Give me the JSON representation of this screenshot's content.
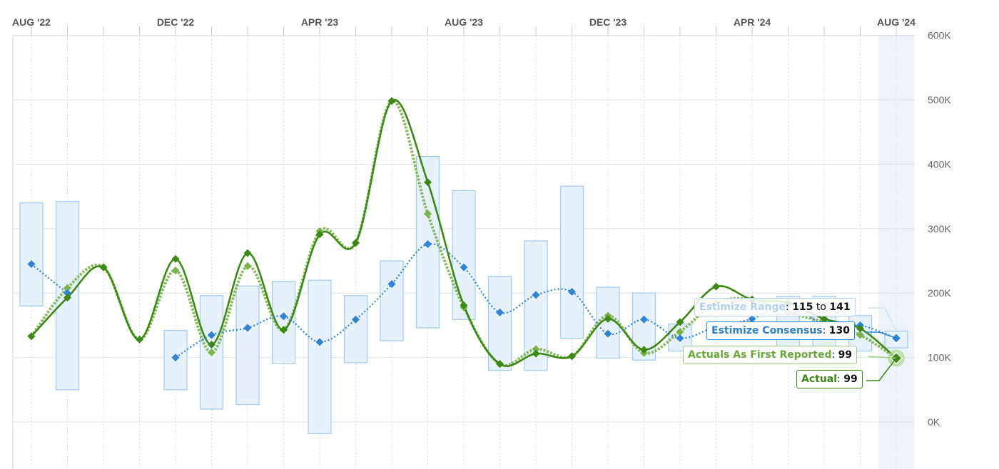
{
  "chart_data": {
    "type": "line",
    "x_tick_labels": [
      "AUG '22",
      "DEC '22",
      "APR '23",
      "AUG '23",
      "DEC '23",
      "APR '24",
      "AUG '24"
    ],
    "y_tick_labels": [
      "600K",
      "500K",
      "400K",
      "300K",
      "200K",
      "100K",
      "0K"
    ],
    "y_ticks": [
      600000,
      500000,
      400000,
      300000,
      200000,
      100000,
      0
    ],
    "ylim": [
      -70000,
      600000
    ],
    "grid": true,
    "x": [
      "2022-08",
      "2022-09",
      "2022-10",
      "2022-11",
      "2022-12",
      "2023-01",
      "2023-02",
      "2023-03",
      "2023-04",
      "2023-05",
      "2023-06",
      "2023-07",
      "2023-08",
      "2023-09",
      "2023-10",
      "2023-11",
      "2023-12",
      "2024-01",
      "2024-02",
      "2024-03",
      "2024-04",
      "2024-05",
      "2024-06",
      "2024-07",
      "2024-08"
    ],
    "series": [
      {
        "name": "Actual",
        "color": "#3c8a14",
        "values": [
          133000,
          193000,
          240000,
          128000,
          253000,
          120000,
          262000,
          143000,
          291000,
          278000,
          498000,
          372000,
          181000,
          90000,
          106000,
          102000,
          160000,
          112000,
          155000,
          210000,
          190000,
          185000,
          160000,
          145000,
          99000
        ]
      },
      {
        "name": "Actuals As First Reported",
        "color": "#7bb34a",
        "values": [
          133000,
          208000,
          240000,
          128000,
          235000,
          108000,
          242000,
          143000,
          296000,
          278000,
          498000,
          323000,
          178000,
          90000,
          113000,
          102000,
          165000,
          107000,
          140000,
          185000,
          190000,
          170000,
          155000,
          135000,
          99000
        ]
      },
      {
        "name": "Estimize Consensus",
        "color": "#2f84d6",
        "values": [
          245000,
          200000,
          null,
          null,
          100000,
          135000,
          146000,
          164000,
          124000,
          159000,
          214000,
          276000,
          240000,
          170000,
          197000,
          202000,
          137000,
          159000,
          130000,
          148000,
          160000,
          183000,
          150000,
          150000,
          130000
        ]
      }
    ],
    "estimize_range": [
      [
        180000,
        340000
      ],
      [
        50000,
        342000
      ],
      null,
      null,
      [
        50000,
        142000
      ],
      [
        20000,
        196000
      ],
      [
        27000,
        211000
      ],
      [
        91000,
        218000
      ],
      [
        -18000,
        220000
      ],
      [
        92000,
        196000
      ],
      [
        126000,
        250000
      ],
      [
        146000,
        412000
      ],
      [
        159000,
        359000
      ],
      [
        80000,
        226000
      ],
      [
        80000,
        281000
      ],
      [
        130000,
        366000
      ],
      [
        99000,
        209000
      ],
      [
        96000,
        200000
      ],
      [
        110000,
        152000
      ],
      null,
      null,
      [
        110000,
        195000
      ],
      [
        110000,
        195000
      ],
      [
        110000,
        165000
      ],
      [
        115000,
        141000
      ]
    ],
    "highlight_index": 24,
    "tooltip": {
      "range_label": "Estimize Range",
      "range_low": "115",
      "range_sep": "to",
      "range_high": "141",
      "consensus_label": "Estimize Consensus",
      "consensus_value": "130",
      "afr_label": "Actuals As First Reported",
      "afr_value": "99",
      "actual_label": "Actual",
      "actual_value": "99"
    }
  }
}
